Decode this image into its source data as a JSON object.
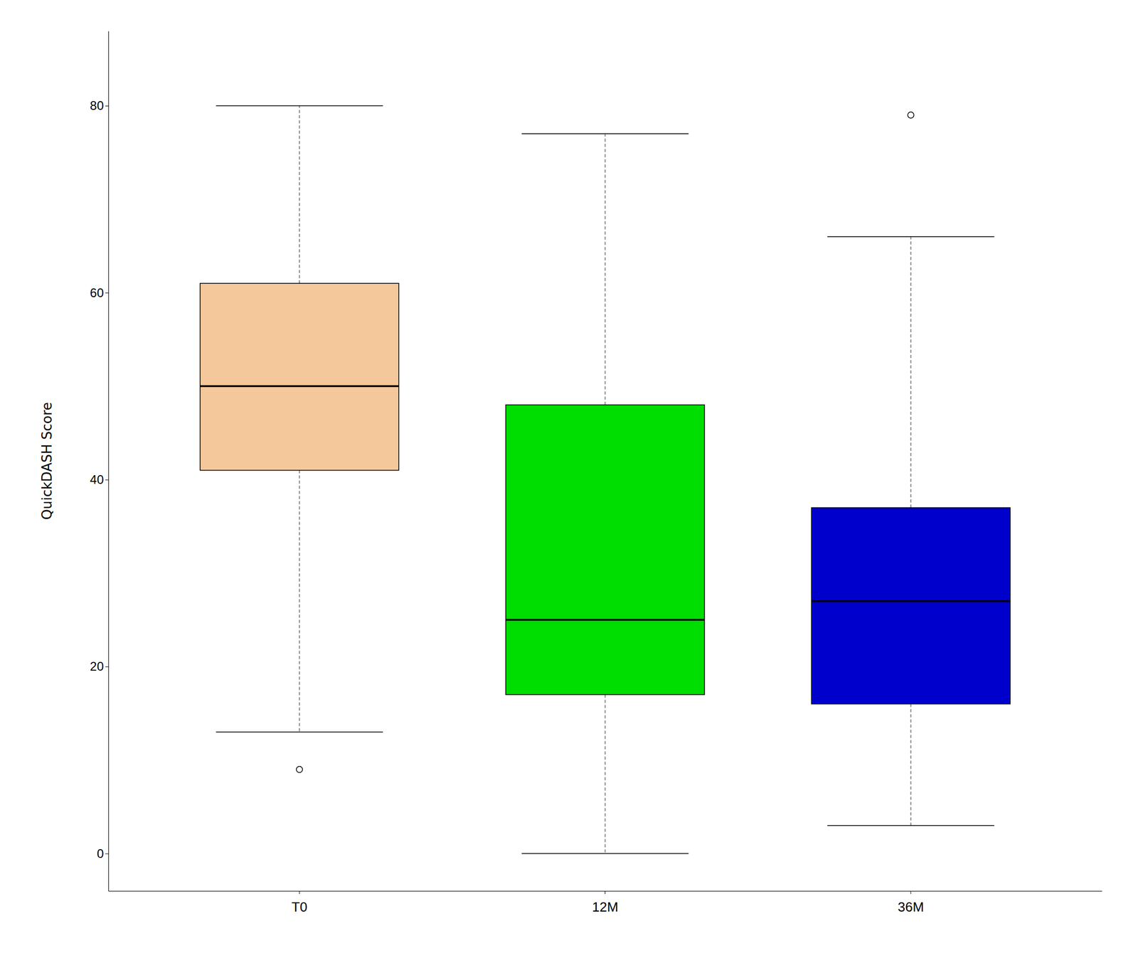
{
  "chart_data": {
    "type": "box",
    "categories": [
      "T0",
      "12M",
      "36M"
    ],
    "boxes": [
      {
        "q1": 41,
        "median": 50,
        "q3": 61,
        "whisker_low": 13,
        "whisker_high": 80,
        "outliers": [
          9
        ]
      },
      {
        "q1": 17,
        "median": 25,
        "q3": 48,
        "whisker_low": 0,
        "whisker_high": 77,
        "outliers": []
      },
      {
        "q1": 16,
        "median": 27,
        "q3": 37,
        "whisker_low": 3,
        "whisker_high": 66,
        "outliers": [
          79
        ]
      }
    ],
    "colors": [
      "#F5C89C",
      "#00DD00",
      "#0000CC"
    ],
    "ylabel": "QuickDASH Score",
    "ylim": [
      -4,
      88
    ],
    "yticks": [
      0,
      20,
      40,
      60,
      80
    ],
    "grid": false
  }
}
